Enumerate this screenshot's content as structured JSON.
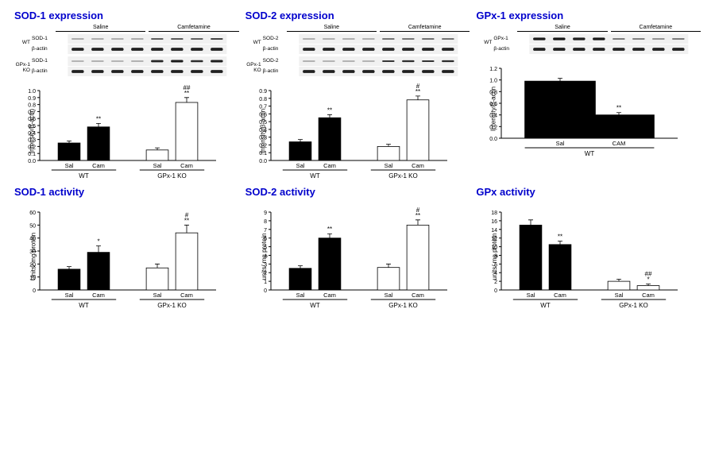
{
  "global": {
    "title_color": "#0000cc",
    "bar_fill": "#000000",
    "bar_empty": "#ffffff",
    "axis_color": "#000000",
    "error_cap": 3
  },
  "panels": [
    {
      "id": "sod1_expr",
      "title": "SOD-1 expression",
      "blot": {
        "treatments": [
          "Saline",
          "Camfetamine"
        ],
        "groups": [
          {
            "genotype": "WT",
            "rows": [
              {
                "label": "SOD-1",
                "left": [
                  0.3,
                  0.28,
                  0.26,
                  0.32
                ],
                "right": [
                  0.55,
                  0.58,
                  0.52,
                  0.6
                ],
                "thick": 3.2
              },
              {
                "label": "β-actin",
                "left": [
                  0.9,
                  0.9,
                  0.9,
                  0.9
                ],
                "right": [
                  0.9,
                  0.9,
                  0.9,
                  0.9
                ],
                "thick": 4.3
              }
            ]
          },
          {
            "genotype": "GPx-1 KO",
            "rows": [
              {
                "label": "SOD-1",
                "left": [
                  0.18,
                  0.2,
                  0.16,
                  0.22
                ],
                "right": [
                  0.85,
                  0.95,
                  0.8,
                  0.92
                ],
                "thick": 3.2
              },
              {
                "label": "β-actin",
                "left": [
                  0.9,
                  0.9,
                  0.9,
                  0.9
                ],
                "right": [
                  0.9,
                  0.9,
                  0.9,
                  0.9
                ],
                "thick": 4.3
              }
            ]
          }
        ]
      },
      "chart": {
        "type": "bar",
        "ylabel": "Intensity/β-actin",
        "ymax": 1.0,
        "ytick": 0.1,
        "groups": [
          "WT",
          "GPx-1 KO"
        ],
        "cats": [
          "Sal",
          "Cam"
        ],
        "bars": [
          {
            "v": 0.25,
            "err": 0.03,
            "fill": "#000000",
            "sig": ""
          },
          {
            "v": 0.48,
            "err": 0.05,
            "fill": "#000000",
            "sig": "**"
          },
          {
            "v": 0.15,
            "err": 0.03,
            "fill": "#ffffff",
            "sig": ""
          },
          {
            "v": 0.83,
            "err": 0.07,
            "fill": "#ffffff",
            "sig": "##\n**"
          }
        ]
      }
    },
    {
      "id": "sod2_expr",
      "title": "SOD-2 expression",
      "blot": {
        "treatments": [
          "Saline",
          "Camfetamine"
        ],
        "groups": [
          {
            "genotype": "WT",
            "rows": [
              {
                "label": "SOD-2",
                "left": [
                  0.25,
                  0.24,
                  0.26,
                  0.24
                ],
                "right": [
                  0.55,
                  0.52,
                  0.58,
                  0.54
                ],
                "thick": 2.8
              },
              {
                "label": "β-actin",
                "left": [
                  0.9,
                  0.9,
                  0.9,
                  0.9
                ],
                "right": [
                  0.9,
                  0.9,
                  0.9,
                  0.9
                ],
                "thick": 4.3
              }
            ]
          },
          {
            "genotype": "GPx-1 KO",
            "rows": [
              {
                "label": "SOD-2",
                "left": [
                  0.2,
                  0.18,
                  0.19,
                  0.17
                ],
                "right": [
                  0.72,
                  0.78,
                  0.75,
                  0.8
                ],
                "thick": 2.8
              },
              {
                "label": "β-actin",
                "left": [
                  0.9,
                  0.9,
                  0.9,
                  0.9
                ],
                "right": [
                  0.9,
                  0.9,
                  0.9,
                  0.9
                ],
                "thick": 4.3
              }
            ]
          }
        ]
      },
      "chart": {
        "type": "bar",
        "ylabel": "Intensity/β-actin",
        "ymax": 0.9,
        "ytick": 0.1,
        "groups": [
          "WT",
          "GPx-1 KO"
        ],
        "cats": [
          "Sal",
          "Cam"
        ],
        "bars": [
          {
            "v": 0.24,
            "err": 0.03,
            "fill": "#000000",
            "sig": ""
          },
          {
            "v": 0.55,
            "err": 0.04,
            "fill": "#000000",
            "sig": "**"
          },
          {
            "v": 0.18,
            "err": 0.03,
            "fill": "#ffffff",
            "sig": ""
          },
          {
            "v": 0.78,
            "err": 0.05,
            "fill": "#ffffff",
            "sig": "#\n**"
          }
        ]
      }
    },
    {
      "id": "gpx1_expr",
      "title": "GPx-1 expression",
      "blot": {
        "treatments": [
          "Saline",
          "Camfetamine"
        ],
        "groups": [
          {
            "genotype": "WT",
            "rows": [
              {
                "label": "GPx-1",
                "left": [
                  0.95,
                  0.98,
                  0.92,
                  0.96
                ],
                "right": [
                  0.45,
                  0.42,
                  0.4,
                  0.44
                ],
                "thick": 3.4
              },
              {
                "label": "β-actin",
                "left": [
                  0.9,
                  0.9,
                  0.9,
                  0.9
                ],
                "right": [
                  0.9,
                  0.9,
                  0.9,
                  0.9
                ],
                "thick": 4.3
              }
            ]
          }
        ]
      },
      "chart": {
        "type": "bar",
        "ylabel": "Intensity/β-actin",
        "ymax": 1.2,
        "ytick": 0.2,
        "groups": [
          "WT"
        ],
        "cats": [
          "Sal",
          "CAM"
        ],
        "bars": [
          {
            "v": 0.98,
            "err": 0.05,
            "fill": "#000000",
            "sig": ""
          },
          {
            "v": 0.4,
            "err": 0.04,
            "fill": "#000000",
            "sig": "**"
          }
        ],
        "wide": true
      }
    },
    {
      "id": "sod1_act",
      "title": "SOD-1 activity",
      "chart": {
        "type": "bar",
        "ylabel": "Units/ mg protein",
        "ymax": 60,
        "ytick": 10,
        "groups": [
          "WT",
          "GPx-1 KO"
        ],
        "cats": [
          "Sal",
          "Cam"
        ],
        "bars": [
          {
            "v": 16,
            "err": 2,
            "fill": "#000000",
            "sig": ""
          },
          {
            "v": 29,
            "err": 5,
            "fill": "#000000",
            "sig": "*"
          },
          {
            "v": 17,
            "err": 3,
            "fill": "#ffffff",
            "sig": ""
          },
          {
            "v": 44,
            "err": 6,
            "fill": "#ffffff",
            "sig": "#\n**"
          }
        ]
      }
    },
    {
      "id": "sod2_act",
      "title": "SOD-2 activity",
      "chart": {
        "type": "bar",
        "ylabel": "units/ mg protein",
        "ymax": 9.0,
        "ytick": 1.0,
        "groups": [
          "WT",
          "GPx-1 KO"
        ],
        "cats": [
          "Sal",
          "Cam"
        ],
        "bars": [
          {
            "v": 2.5,
            "err": 0.3,
            "fill": "#000000",
            "sig": ""
          },
          {
            "v": 6.0,
            "err": 0.5,
            "fill": "#000000",
            "sig": "**"
          },
          {
            "v": 2.6,
            "err": 0.4,
            "fill": "#ffffff",
            "sig": ""
          },
          {
            "v": 7.5,
            "err": 0.6,
            "fill": "#ffffff",
            "sig": "#\n**"
          }
        ]
      }
    },
    {
      "id": "gpx_act",
      "title": "GPx activity",
      "chart": {
        "type": "bar",
        "ylabel": "units/ mg protein",
        "ymax": 18,
        "ytick": 2,
        "groups": [
          "WT",
          "GPx-1 KO"
        ],
        "cats": [
          "Sal",
          "Cam"
        ],
        "bars": [
          {
            "v": 15.0,
            "err": 1.2,
            "fill": "#000000",
            "sig": ""
          },
          {
            "v": 10.5,
            "err": 0.8,
            "fill": "#000000",
            "sig": "**"
          },
          {
            "v": 2.0,
            "err": 0.5,
            "fill": "#ffffff",
            "sig": ""
          },
          {
            "v": 1.0,
            "err": 0.4,
            "fill": "#ffffff",
            "sig": "##\n*"
          }
        ]
      }
    }
  ]
}
